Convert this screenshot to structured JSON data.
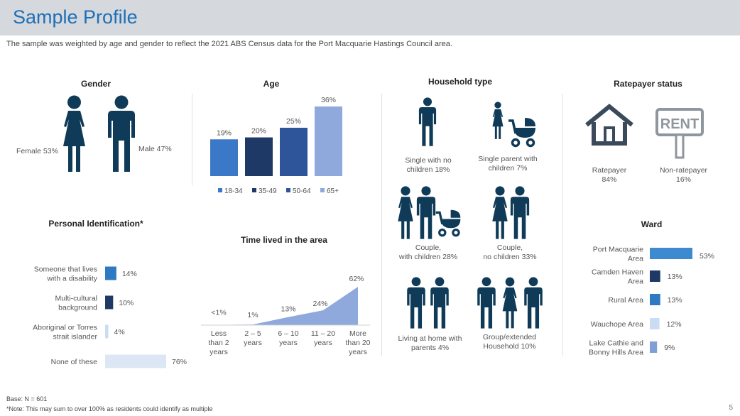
{
  "header": {
    "title": "Sample Profile",
    "subtitle": "The sample was weighted by age and gender to reflect the 2021 ABS Census data for the Port Macquarie Hastings Council area."
  },
  "colors": {
    "navy": "#0f3b58",
    "blue_bright": "#3b78c8",
    "blue_dark": "#1e3966",
    "blue_mid": "#2e5599",
    "blue_light": "#8fa9dc",
    "pale": "#dce6f4"
  },
  "gender": {
    "title": "Gender",
    "female_label": "Female 53%",
    "male_label": "Male 47%"
  },
  "household": {
    "title": "Household type",
    "single_no_children": "Single with no children 18%",
    "single_parent": "Single parent with children 7%",
    "couple_children_line1": "Couple,",
    "couple_children_line2": "with children  28%",
    "couple_no_children_line1": "Couple,",
    "couple_no_children_line2": "no children 33%",
    "home_with_parents": "Living at home with parents 4%",
    "group_household": "Group/extended Household 10%"
  },
  "ratepayer": {
    "title": "Ratepayer status",
    "ratepayer_label": "Ratepayer",
    "ratepayer_value": "84%",
    "non_ratepayer_label": "Non-ratepayer",
    "non_ratepayer_value": "16%",
    "rent_sign": "RENT"
  },
  "chart_data": [
    {
      "id": "age",
      "type": "bar",
      "title": "Age",
      "categories": [
        "18-34",
        "35-49",
        "50-64",
        "65+"
      ],
      "values": [
        19,
        20,
        25,
        36
      ],
      "value_labels": [
        "19%",
        "20%",
        "25%",
        "36%"
      ],
      "colors": [
        "#3b78c8",
        "#1e3966",
        "#2e5599",
        "#8fa9dc"
      ],
      "legend_position": "bottom",
      "ylim": [
        0,
        36
      ]
    },
    {
      "id": "personal_identification",
      "type": "bar",
      "orientation": "horizontal",
      "title": "Personal Identification*",
      "categories": [
        "Someone that lives with a disability",
        "Multi-cultural background",
        "Aboriginal or Torres strait islander",
        "None of these"
      ],
      "values": [
        14,
        10,
        4,
        76
      ],
      "value_labels": [
        "14%",
        "10%",
        "4%",
        "76%"
      ],
      "colors": [
        "#2e79c2",
        "#1e3966",
        "#c9dcf3",
        "#dce6f4"
      ],
      "xlim": [
        0,
        76
      ]
    },
    {
      "id": "time_lived",
      "type": "area",
      "title": "Time lived in the area",
      "categories": [
        "Less than 2 years",
        "2 – 5 years",
        "6 – 10 years",
        "11 – 20 years",
        "More than 20 years"
      ],
      "values": [
        0.5,
        1,
        13,
        24,
        62
      ],
      "value_labels": [
        "<1%",
        "1%",
        "13%",
        "24%",
        "62%"
      ],
      "color": "#8fa9dc",
      "ylim": [
        0,
        62
      ]
    },
    {
      "id": "ward",
      "type": "bar",
      "orientation": "horizontal",
      "title": "Ward",
      "categories": [
        "Port Macquarie Area",
        "Camden Haven Area",
        "Rural Area",
        "Wauchope Area",
        "Lake Cathie and Bonny Hills Area"
      ],
      "values": [
        53,
        13,
        13,
        12,
        9
      ],
      "value_labels": [
        "53%",
        "13%",
        "13%",
        "12%",
        "9%"
      ],
      "colors": [
        "#3e8ad0",
        "#1e3966",
        "#2e79c2",
        "#c9dcf3",
        "#7f9fd6"
      ],
      "xlim": [
        0,
        53
      ]
    }
  ],
  "footer": {
    "base": "Base: N = 601",
    "note": "*Note: This may sum to over 100% as residents could identify as multiple",
    "page_number": "5"
  }
}
